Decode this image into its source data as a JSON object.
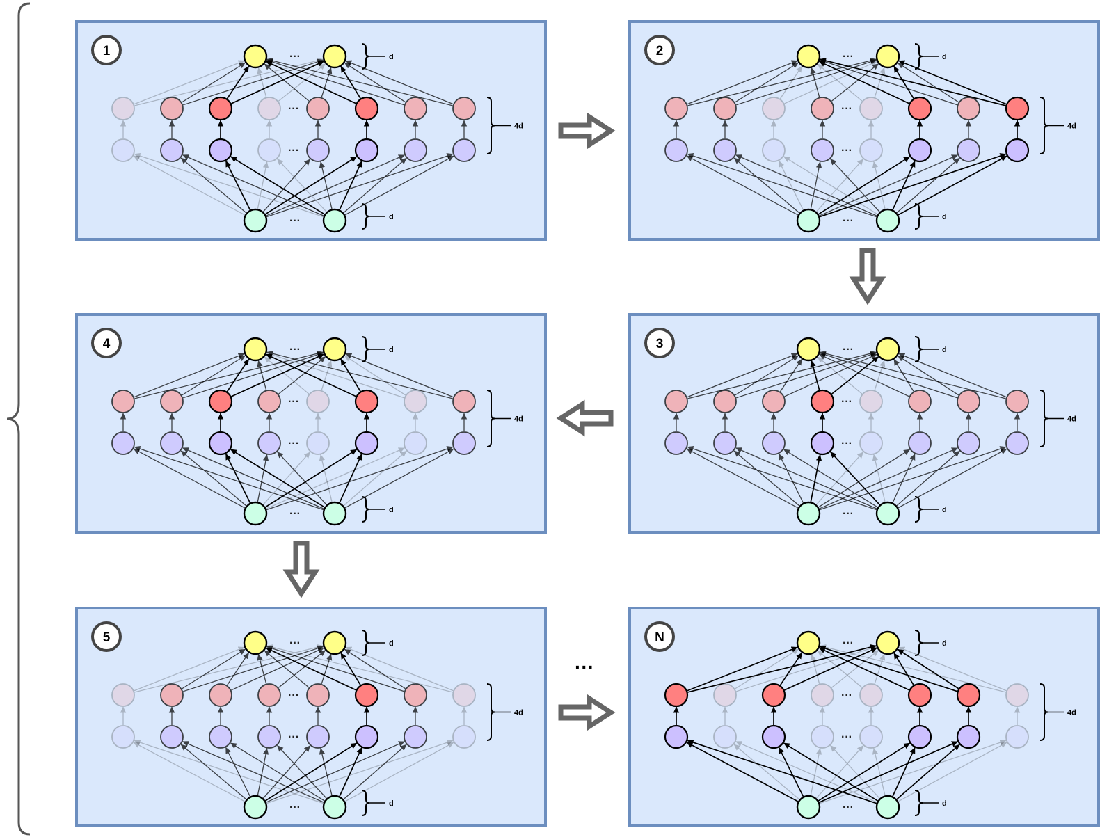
{
  "panels": [
    {
      "label": "1",
      "hidden": [
        0,
        3
      ],
      "bright": [
        2,
        5
      ],
      "top_label": "d",
      "mid_label": "4d",
      "bottom_label": "d",
      "ellipsis": "···"
    },
    {
      "label": "2",
      "hidden": [
        2,
        4
      ],
      "bright": [
        5,
        7
      ],
      "top_label": "d",
      "mid_label": "4d",
      "bottom_label": "d",
      "ellipsis": "···"
    },
    {
      "label": "3",
      "hidden": [
        4
      ],
      "bright": [
        3
      ],
      "top_label": "d",
      "mid_label": "4d",
      "bottom_label": "d",
      "ellipsis": "···"
    },
    {
      "label": "4",
      "hidden": [
        4,
        6
      ],
      "bright": [
        2,
        5
      ],
      "top_label": "d",
      "mid_label": "4d",
      "bottom_label": "d",
      "ellipsis": "···"
    },
    {
      "label": "5",
      "hidden": [
        0,
        7
      ],
      "bright": [
        5
      ],
      "top_label": "d",
      "mid_label": "4d",
      "bottom_label": "d",
      "ellipsis": "···"
    },
    {
      "label": "N",
      "hidden": [
        1,
        3,
        4,
        7
      ],
      "bright": [
        0,
        2,
        5,
        6
      ],
      "top_label": "d",
      "mid_label": "4d",
      "bottom_label": "d",
      "ellipsis": "···"
    }
  ],
  "between_ellipsis": "···",
  "colors": {
    "panel_fill": "#dae8fc",
    "panel_border": "#6c8ebf",
    "output_node": "#ffff88",
    "hidden_node": "#f8a0a0",
    "hidden_node_bright": "#ff8080",
    "input_node": "#ccffe6",
    "intermediate_node": "#ccc0ff",
    "flow_arrow": "#666666"
  }
}
